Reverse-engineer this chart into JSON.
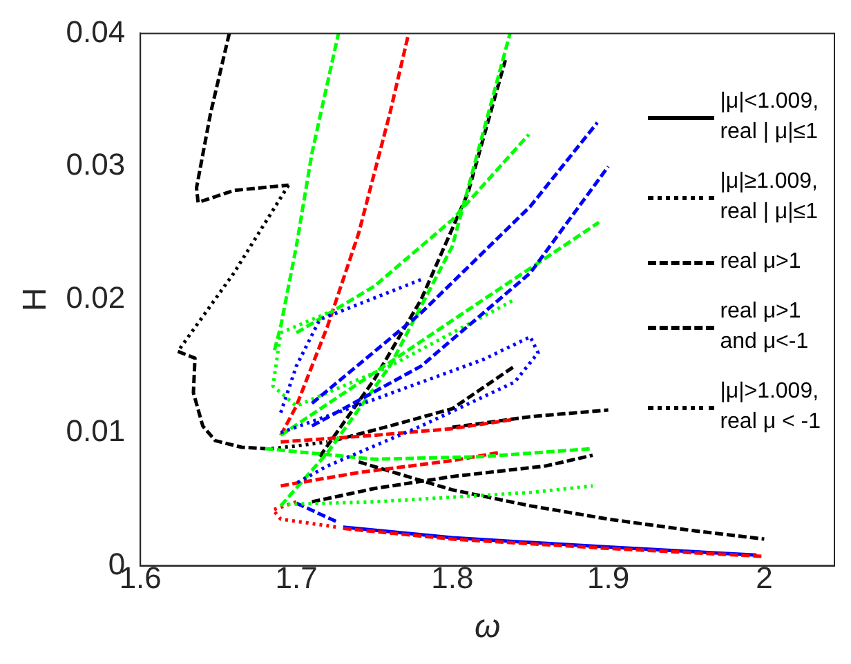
{
  "chart_data": {
    "type": "line",
    "xlabel": "ω",
    "ylabel": "H",
    "xlim": [
      1.6,
      2.045
    ],
    "ylim": [
      0,
      0.04
    ],
    "xticks": [
      1.6,
      1.7,
      1.8,
      1.9,
      2
    ],
    "yticks": [
      0,
      0.01,
      0.02,
      0.03,
      0.04
    ],
    "grid": false,
    "legend": "top right",
    "marker": "none",
    "series": [
      {
        "name": "|μ|<1.009,\nreal | μ|≤1",
        "color": "#000000",
        "line_style": "solid"
      },
      {
        "name": "|μ|≥1.009,\nreal | μ|≤1",
        "color": "#000000",
        "line_style": "dotted",
        "x": [
          1.695,
          1.66,
          1.624
        ],
        "values": [
          0.0286,
          0.022,
          0.0161
        ]
      },
      {
        "name": "real  μ>1",
        "color": "#000000",
        "line_style": "dashed",
        "x": [
          1.624,
          1.635,
          1.634,
          1.64,
          1.648,
          1.665,
          1.68
        ],
        "values": [
          0.0161,
          0.0156,
          0.013,
          0.0105,
          0.0094,
          0.0089,
          0.0088
        ]
      },
      {
        "name": "real  μ>1\nand  μ<-1",
        "color": "#000000",
        "line_style": "dashed",
        "x": [
          1.657,
          1.645,
          1.636,
          1.637,
          1.66,
          1.695
        ],
        "values": [
          0.04,
          0.034,
          0.0284,
          0.0273,
          0.0282,
          0.0286
        ]
      },
      {
        "name": "|μ|>1.009,\nreal  μ < -1",
        "color": "#000000",
        "line_style": "dotted",
        "x": [
          1.684,
          1.7,
          1.72
        ],
        "values": [
          0.0088,
          0.009,
          0.0093
        ]
      },
      {
        "color": "#000000",
        "line_style": "dashed",
        "x": [
          1.724,
          1.76,
          1.8,
          1.84
        ],
        "values": [
          0.0094,
          0.0105,
          0.0118,
          0.015
        ]
      },
      {
        "color": "#000000",
        "line_style": "dashed",
        "x": [
          1.715,
          1.75,
          1.78,
          1.81,
          1.834
        ],
        "values": [
          0.0082,
          0.014,
          0.02,
          0.028,
          0.038
        ]
      },
      {
        "color": "#000000",
        "line_style": "dashed",
        "x": [
          1.8,
          1.85,
          1.9
        ],
        "values": [
          0.0104,
          0.0112,
          0.0117
        ]
      },
      {
        "color": "#000000",
        "line_style": "dashed",
        "x": [
          1.71,
          1.75,
          1.8,
          1.86,
          1.89
        ],
        "values": [
          0.0048,
          0.0058,
          0.0067,
          0.0075,
          0.0083
        ]
      },
      {
        "color": "#000000",
        "line_style": "dashed",
        "x": [
          1.74,
          1.8,
          1.85,
          1.9,
          1.95,
          2.0
        ],
        "values": [
          0.0078,
          0.0057,
          0.0045,
          0.0035,
          0.0027,
          0.002
        ]
      },
      {
        "color": "#ff0000",
        "line_style": "dotted",
        "x": [
          1.7,
          1.685,
          1.69,
          1.726
        ],
        "values": [
          0.0048,
          0.0042,
          0.0035,
          0.0029
        ]
      },
      {
        "color": "#0000ff",
        "line_style": "dashed",
        "x": [
          1.7,
          1.726
        ],
        "values": [
          0.0047,
          0.0033
        ]
      },
      {
        "color": "#0000ff",
        "line_style": "solid",
        "x": [
          1.73,
          1.8,
          1.9,
          1.995
        ],
        "values": [
          0.0029,
          0.0021,
          0.0014,
          0.0008
        ]
      },
      {
        "color": "#ff0000",
        "line_style": "dashed",
        "x": [
          1.73,
          1.8,
          1.9,
          2.0
        ],
        "values": [
          0.0028,
          0.002,
          0.0013,
          0.0007
        ]
      },
      {
        "color": "#ff0000",
        "line_style": "dashed",
        "x": [
          1.69,
          1.7,
          1.72,
          1.74,
          1.76,
          1.772
        ],
        "values": [
          0.0098,
          0.012,
          0.018,
          0.025,
          0.034,
          0.04
        ]
      },
      {
        "color": "#ff0000",
        "line_style": "dashed",
        "x": [
          1.69,
          1.75,
          1.8,
          1.84
        ],
        "values": [
          0.0093,
          0.0098,
          0.0103,
          0.011
        ]
      },
      {
        "color": "#ff0000",
        "line_style": "dashed",
        "x": [
          1.69,
          1.74,
          1.8,
          1.83
        ],
        "values": [
          0.006,
          0.007,
          0.0079,
          0.0085
        ]
      },
      {
        "color": "#00ff00",
        "line_style": "dashed",
        "x": [
          1.686,
          1.69,
          1.7,
          1.71,
          1.727
        ],
        "values": [
          0.0162,
          0.018,
          0.024,
          0.031,
          0.04
        ]
      },
      {
        "color": "#00ff00",
        "line_style": "dashed",
        "x": [
          1.69,
          1.72,
          1.76,
          1.8,
          1.837
        ],
        "values": [
          0.0045,
          0.0085,
          0.015,
          0.024,
          0.04
        ]
      },
      {
        "color": "#00ff00",
        "line_style": "dashed",
        "x": [
          1.69,
          1.75,
          1.82,
          1.894
        ],
        "values": [
          0.0098,
          0.0145,
          0.02,
          0.0258
        ]
      },
      {
        "color": "#00ff00",
        "line_style": "dashed",
        "x": [
          1.7,
          1.75,
          1.8,
          1.849
        ],
        "values": [
          0.0175,
          0.021,
          0.026,
          0.0324
        ]
      },
      {
        "color": "#00ff00",
        "line_style": "dotted",
        "x": [
          1.72,
          1.69,
          1.685,
          1.7,
          1.76,
          1.84
        ],
        "values": [
          0.019,
          0.0175,
          0.0135,
          0.012,
          0.015,
          0.02
        ]
      },
      {
        "color": "#00ff00",
        "line_style": "dashed",
        "x": [
          1.68,
          1.75,
          1.82,
          1.89
        ],
        "values": [
          0.0088,
          0.008,
          0.0082,
          0.0088
        ]
      },
      {
        "color": "#00ff00",
        "line_style": "dotted",
        "x": [
          1.69,
          1.75,
          1.85,
          1.89
        ],
        "values": [
          0.0046,
          0.0048,
          0.0055,
          0.006
        ]
      },
      {
        "color": "#0000ff",
        "line_style": "dashed",
        "x": [
          1.71,
          1.78,
          1.85,
          1.893
        ],
        "values": [
          0.0122,
          0.019,
          0.027,
          0.0333
        ]
      },
      {
        "color": "#0000ff",
        "line_style": "dotted",
        "x": [
          1.69,
          1.7,
          1.715,
          1.78
        ],
        "values": [
          0.0115,
          0.015,
          0.0185,
          0.0215
        ]
      },
      {
        "color": "#0000ff",
        "line_style": "dotted",
        "x": [
          1.69,
          1.75,
          1.82,
          1.85,
          1.855,
          1.84,
          1.78,
          1.72,
          1.7
        ],
        "values": [
          0.01,
          0.0125,
          0.0155,
          0.0172,
          0.016,
          0.0138,
          0.0105,
          0.0075,
          0.0062
        ]
      },
      {
        "color": "#0000ff",
        "line_style": "dashed",
        "x": [
          1.71,
          1.78,
          1.85,
          1.9
        ],
        "values": [
          0.0105,
          0.015,
          0.022,
          0.03
        ]
      }
    ]
  }
}
